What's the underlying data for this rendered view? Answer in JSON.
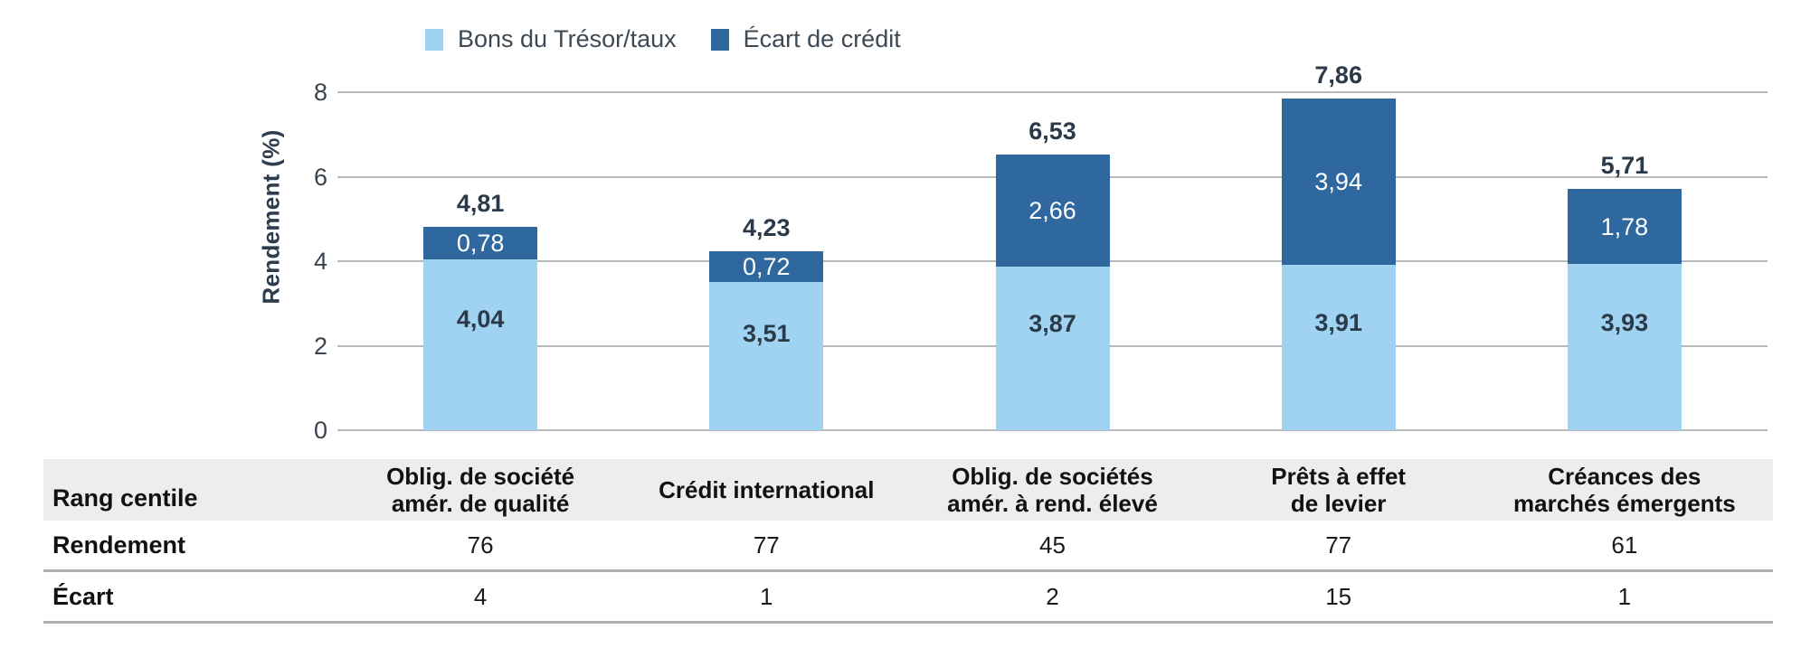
{
  "chart_data": {
    "type": "bar",
    "stacked": true,
    "ylabel": "Rendement (%)",
    "ylim": [
      0,
      8
    ],
    "yticks": [
      0,
      2,
      4,
      6,
      8
    ],
    "grid": true,
    "legend_position": "top",
    "categories": [
      "Oblig. de société amér. de qualité",
      "Crédit international",
      "Oblig. de sociétés amér. à rend. élevé",
      "Prêts à effet de levier",
      "Créances des marchés émergents"
    ],
    "series": [
      {
        "name": "Bons du Trésor/taux",
        "color": "#9fd3f1",
        "values": [
          4.04,
          3.51,
          3.87,
          3.91,
          3.93
        ],
        "labels": [
          "4,04",
          "3,51",
          "3,87",
          "3,91",
          "3,93"
        ]
      },
      {
        "name": "Écart de crédit",
        "color": "#2e689f",
        "values": [
          0.78,
          0.72,
          2.66,
          3.94,
          1.78
        ],
        "labels": [
          "0,78",
          "0,72",
          "2,66",
          "3,94",
          "1,78"
        ]
      }
    ],
    "totals": [
      4.81,
      4.23,
      6.53,
      7.86,
      5.71
    ],
    "total_labels": [
      "4,81",
      "4,23",
      "6,53",
      "7,86",
      "5,71"
    ]
  },
  "table": {
    "corner_label": "Rang centile",
    "column_headers": [
      [
        "Oblig. de société",
        "amér. de qualité"
      ],
      [
        "Crédit international"
      ],
      [
        "Oblig. de sociétés",
        "amér. à rend. élevé"
      ],
      [
        "Prêts à effet",
        "de levier"
      ],
      [
        "Créances des",
        "marchés émergents"
      ]
    ],
    "rows": [
      {
        "label": "Rendement",
        "values": [
          "76",
          "77",
          "45",
          "77",
          "61"
        ]
      },
      {
        "label": "Écart",
        "values": [
          "4",
          "1",
          "2",
          "15",
          "1"
        ]
      }
    ]
  },
  "colors": {
    "treasury": "#9fd3f1",
    "credit_spread": "#2e689f",
    "navy_text": "#2b3a49",
    "tick_text": "#39444f",
    "gridline": "#b6b9bc",
    "table_header_bg": "#ededee",
    "table_divider": "#a8afb5"
  }
}
